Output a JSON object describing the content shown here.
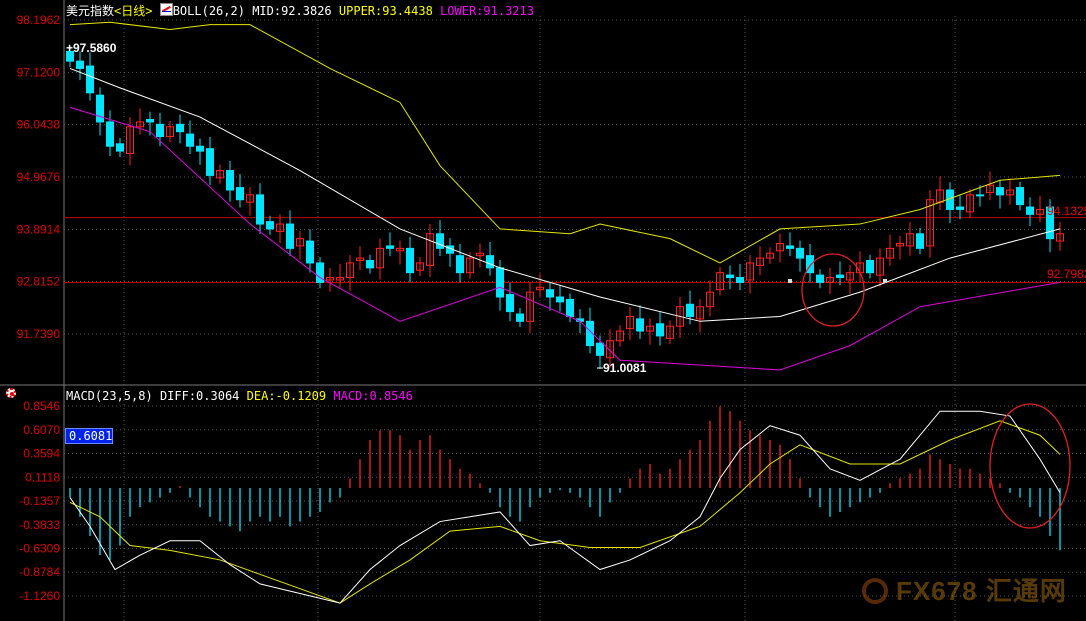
{
  "header": {
    "instrument": "美元指数",
    "period": "<日线>",
    "boll_label": "BOLL(26,2)",
    "mid": "MID:92.3826",
    "upper": "UPPER:93.4438",
    "lower": "LOWER:91.3213"
  },
  "macd_header": {
    "label": "MACD(23,5,8)",
    "diff": "DIFF:0.3064",
    "dea": "DEA:-0.1209",
    "macd": "MACD:0.8546",
    "cursor_value": "0.6081"
  },
  "watermark": "FX678 汇通网",
  "colors": {
    "up": "#ff2020",
    "down": "#00e5ff",
    "mid": "#ffffff",
    "upper": "#e6e600",
    "lower": "#e000e0",
    "axis_text": "#e00000",
    "diff": "#ffffff",
    "dea": "#e6e600"
  },
  "chart_data": [
    {
      "type": "candlestick",
      "title": "美元指数",
      "y_ticks": [
        "98.1962",
        "97.1200",
        "96.0438",
        "94.9676",
        "93.8914",
        "92.8152",
        "91.7390"
      ],
      "ylim": [
        91.0,
        98.1962
      ],
      "grid": true,
      "annotations": {
        "max": "97.5860",
        "min": "91.0081",
        "last_right": "94.1325",
        "lower_right": "92.7982"
      },
      "reference_lines": [
        94.1325,
        92.7982
      ],
      "close": [
        97.35,
        97.2,
        96.7,
        96.1,
        95.6,
        95.5,
        96.0,
        96.1,
        96.1,
        95.8,
        96.0,
        95.9,
        95.6,
        95.5,
        95.0,
        95.1,
        94.7,
        94.5,
        94.6,
        94.0,
        93.9,
        94.0,
        93.5,
        93.7,
        93.2,
        92.8,
        92.9,
        92.9,
        93.2,
        93.3,
        93.1,
        93.5,
        93.5,
        93.5,
        93.0,
        93.2,
        93.8,
        93.5,
        93.4,
        93.0,
        93.3,
        93.4,
        93.1,
        92.5,
        92.2,
        92.0,
        92.6,
        92.7,
        92.5,
        92.4,
        92.1,
        92.0,
        91.5,
        91.3,
        91.6,
        91.8,
        92.1,
        91.8,
        91.9,
        91.7,
        91.9,
        92.3,
        92.1,
        92.3,
        92.6,
        93.0,
        92.9,
        92.8,
        93.2,
        93.3,
        93.4,
        93.6,
        93.5,
        93.3,
        93.0,
        92.8,
        92.9,
        92.9,
        93.0,
        93.2,
        93.0,
        93.3,
        93.5,
        93.6,
        93.8,
        93.5,
        94.5,
        94.7,
        94.3,
        94.3,
        94.6,
        94.6,
        94.8,
        94.6,
        94.7,
        94.4,
        94.2,
        94.3,
        93.7,
        93.8
      ],
      "series": [
        {
          "name": "UPPER",
          "values": [
            98.1,
            98.15,
            98.0,
            98.1,
            98.1,
            97.2,
            96.5,
            95.2,
            93.9,
            93.8,
            94.0,
            93.7,
            93.2,
            93.9,
            94.0,
            94.3,
            94.9,
            95.0
          ],
          "at": [
            0,
            4,
            10,
            14,
            18,
            26,
            33,
            37,
            43,
            50,
            53,
            60,
            65,
            71,
            79,
            85,
            93,
            99
          ]
        },
        {
          "name": "MID",
          "values": [
            97.2,
            96.8,
            96.2,
            95.1,
            93.9,
            93.1,
            92.5,
            92.0,
            92.1,
            92.6,
            93.3,
            93.9
          ],
          "at": [
            0,
            5,
            13,
            23,
            33,
            43,
            53,
            63,
            71,
            79,
            88,
            99
          ]
        },
        {
          "name": "LOWER",
          "values": [
            96.4,
            95.9,
            94.0,
            92.9,
            92.0,
            92.7,
            92.0,
            91.2,
            91.0,
            91.5,
            92.3,
            92.8
          ],
          "at": [
            0,
            8,
            18,
            25,
            33,
            43,
            51,
            55,
            71,
            78,
            85,
            99
          ]
        }
      ]
    },
    {
      "type": "bar+line",
      "title": "MACD(23,5,8)",
      "y_ticks": [
        "0.8546",
        "0.6070",
        "0.3594",
        "0.1118",
        "-0.1357",
        "-0.3833",
        "-0.6309",
        "-0.8784",
        "-1.1260"
      ],
      "ylim": [
        -1.25,
        0.9
      ],
      "histogram": [
        -0.1,
        -0.3,
        -0.5,
        -0.7,
        -0.75,
        -0.6,
        -0.3,
        -0.2,
        -0.15,
        -0.1,
        -0.05,
        0.02,
        -0.1,
        -0.2,
        -0.3,
        -0.35,
        -0.4,
        -0.45,
        -0.35,
        -0.3,
        -0.35,
        -0.3,
        -0.4,
        -0.35,
        -0.3,
        -0.25,
        -0.15,
        -0.1,
        0.1,
        0.3,
        0.5,
        0.6,
        0.6,
        0.55,
        0.4,
        0.5,
        0.55,
        0.4,
        0.3,
        0.2,
        0.15,
        0.05,
        -0.05,
        -0.2,
        -0.3,
        -0.35,
        -0.2,
        -0.1,
        -0.05,
        -0.02,
        -0.05,
        -0.1,
        -0.2,
        -0.3,
        -0.15,
        -0.05,
        0.1,
        0.2,
        0.25,
        0.15,
        0.2,
        0.3,
        0.4,
        0.5,
        0.7,
        0.85,
        0.8,
        0.7,
        0.6,
        0.55,
        0.5,
        0.45,
        0.3,
        0.1,
        -0.1,
        -0.2,
        -0.3,
        -0.25,
        -0.2,
        -0.15,
        -0.1,
        -0.05,
        0.05,
        0.1,
        0.15,
        0.2,
        0.35,
        0.3,
        0.25,
        0.2,
        0.2,
        0.15,
        0.1,
        0.05,
        -0.05,
        -0.1,
        -0.2,
        -0.3,
        -0.5,
        -0.65
      ],
      "series": [
        {
          "name": "DIFF",
          "values": [
            -0.1,
            -0.4,
            -0.85,
            -0.7,
            -0.55,
            -0.55,
            -0.8,
            -1.0,
            -1.1,
            -1.2,
            -0.85,
            -0.6,
            -0.35,
            -0.3,
            -0.25,
            -0.6,
            -0.55,
            -0.85,
            -0.75,
            -0.55,
            -0.3,
            0.1,
            0.4,
            0.65,
            0.55,
            0.2,
            0.08,
            0.3,
            0.8,
            0.8,
            0.75,
            0.3,
            -0.05
          ],
          "at": [
            0,
            2,
            4.5,
            7,
            10,
            13,
            16,
            19,
            23,
            27,
            30,
            33,
            37,
            40,
            43,
            46,
            49,
            53,
            56,
            60,
            63,
            65,
            67,
            70,
            73,
            76,
            79,
            83,
            87,
            91,
            94,
            97,
            99
          ]
        },
        {
          "name": "DEA",
          "values": [
            -0.15,
            -0.3,
            -0.6,
            -0.65,
            -0.75,
            -0.9,
            -1.05,
            -1.2,
            -1.0,
            -0.75,
            -0.45,
            -0.4,
            -0.55,
            -0.62,
            -0.62,
            -0.4,
            -0.05,
            0.25,
            0.45,
            0.25,
            0.25,
            0.5,
            0.7,
            0.55,
            0.35
          ],
          "at": [
            0,
            3,
            6,
            10,
            15,
            19,
            23,
            27,
            30,
            34,
            38,
            43,
            47,
            52,
            57,
            63,
            67,
            70,
            73,
            78,
            83,
            88,
            93,
            97,
            99
          ]
        }
      ]
    }
  ]
}
